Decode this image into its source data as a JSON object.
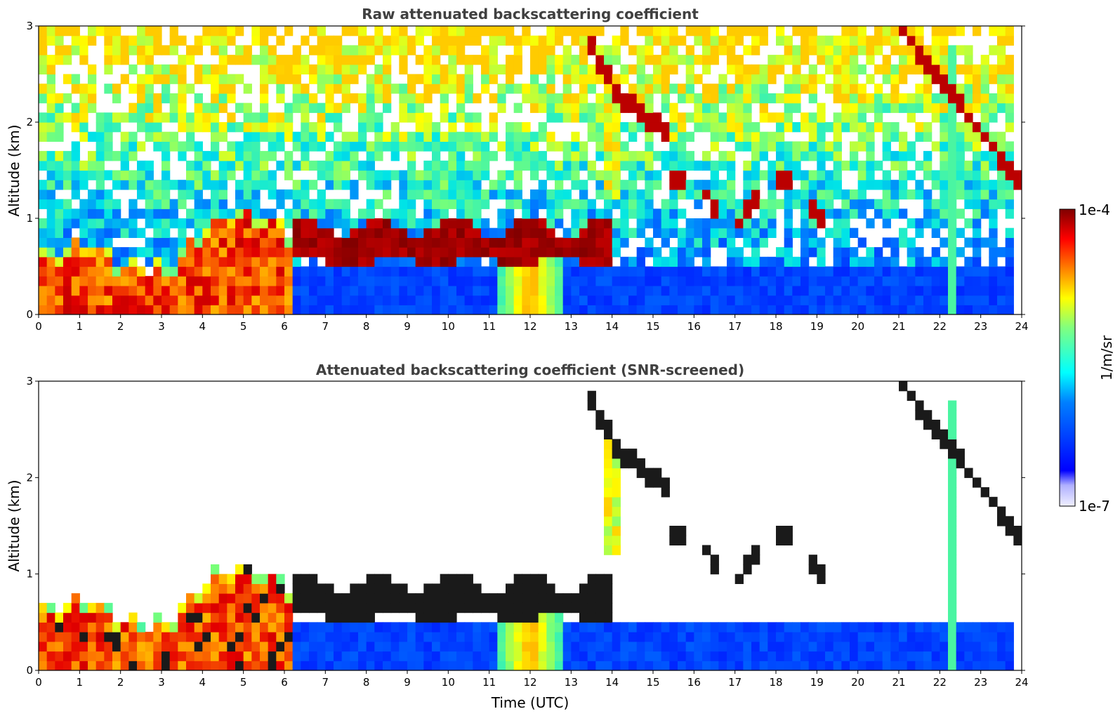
{
  "chart_data": [
    {
      "type": "heatmap",
      "title": "Raw attenuated backscattering coefficient",
      "xlabel": "",
      "ylabel": "Altitude (km)",
      "xlim": [
        0,
        24
      ],
      "ylim": [
        0,
        3
      ],
      "x_ticks": [
        "0",
        "1",
        "2",
        "3",
        "4",
        "5",
        "6",
        "7",
        "8",
        "9",
        "10",
        "11",
        "12",
        "13",
        "14",
        "15",
        "16",
        "17",
        "18",
        "19",
        "20",
        "21",
        "22",
        "23",
        "24"
      ],
      "y_ticks": [
        "0",
        "1",
        "2",
        "3"
      ],
      "layers": [
        {
          "name": "surface aerosol/boundary layer",
          "x_range": [
            0,
            6.2
          ],
          "top_km": [
            0.5,
            0.7,
            0.45,
            0.4,
            0.9,
            1.0,
            0.8
          ],
          "level": "high"
        },
        {
          "name": "low-level cloud layer",
          "x_range": [
            6.2,
            14.0
          ],
          "base_km": 0.55,
          "top_km": 1.1,
          "level": "very high"
        },
        {
          "name": "fog/precipitation column",
          "x_range": [
            11.2,
            12.8
          ],
          "top_km": 0.7,
          "level": "medium"
        },
        {
          "name": "descending cloud streak",
          "x_range": [
            13.5,
            15.3
          ],
          "alt_km": [
            2.8,
            2.3,
            2.1,
            1.9
          ],
          "level": "very high"
        },
        {
          "name": "mid-level cloud patches",
          "x_range": [
            15.3,
            19.2
          ],
          "alt_km": [
            0.8,
            1.4
          ],
          "level": "very high"
        },
        {
          "name": "upper cloud",
          "x_range": [
            21.0,
            24.0
          ],
          "alt_km": [
            1.3,
            3.0
          ],
          "level": "very high"
        },
        {
          "name": "aerosol background",
          "x_range": [
            6.2,
            24.0
          ],
          "top_km": 0.6,
          "level": "low"
        }
      ]
    },
    {
      "type": "heatmap",
      "title": "Attenuated backscattering coefficient (SNR-screened)",
      "xlabel": "Time (UTC)",
      "ylabel": "Altitude (km)",
      "xlim": [
        0,
        24
      ],
      "ylim": [
        0,
        3
      ],
      "x_ticks": [
        "0",
        "1",
        "2",
        "3",
        "4",
        "5",
        "6",
        "7",
        "8",
        "9",
        "10",
        "11",
        "12",
        "13",
        "14",
        "15",
        "16",
        "17",
        "18",
        "19",
        "20",
        "21",
        "22",
        "23",
        "24"
      ],
      "y_ticks": [
        "0",
        "1",
        "2",
        "3"
      ],
      "screening": "noise removed above signal layers"
    }
  ],
  "colorbar": {
    "max_label": "1e-4",
    "min_label": "1e-7",
    "unit_label": "1/m/sr",
    "colormap": "jet",
    "scale": "log"
  }
}
